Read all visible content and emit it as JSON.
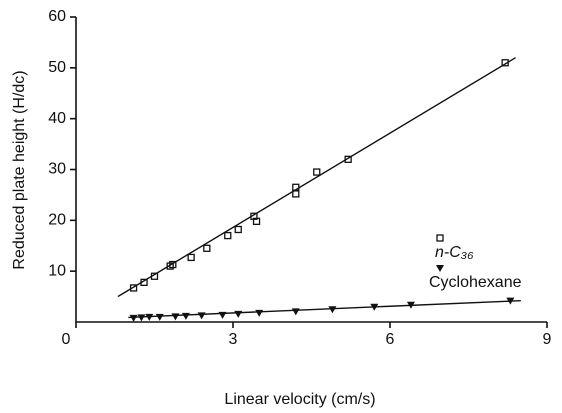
{
  "chart_data": {
    "type": "scatter",
    "x_label": "Linear velocity (cm/s)",
    "y_label": "Reduced plate height (H/dc)",
    "xlim": [
      0,
      9
    ],
    "xticks": [
      0,
      3,
      6,
      9
    ],
    "ylim": [
      0,
      60
    ],
    "yticks": [
      10,
      20,
      30,
      40,
      50,
      60
    ],
    "series": [
      {
        "name": "n-C₃₆",
        "marker": "open-square",
        "color": "#111",
        "x": [
          1.1,
          1.3,
          1.5,
          1.8,
          1.85,
          2.2,
          2.5,
          2.9,
          3.1,
          3.4,
          3.45,
          4.2,
          4.2,
          4.6,
          5.2,
          8.2
        ],
        "values": [
          6.7,
          7.8,
          9,
          11,
          11.3,
          12.7,
          14.5,
          17,
          18.2,
          20.8,
          19.8,
          25.2,
          26.5,
          29.5,
          32,
          51
        ],
        "fit": {
          "x": [
            0.8,
            8.4
          ],
          "values": [
            5,
            52
          ]
        }
      },
      {
        "name": "Cyclohexane",
        "marker": "filled-triangle",
        "color": "#111",
        "x": [
          1.1,
          1.25,
          1.4,
          1.6,
          1.9,
          2.1,
          2.4,
          2.8,
          3.1,
          3.5,
          4.2,
          4.9,
          5.7,
          6.4,
          8.3
        ],
        "values": [
          0.8,
          0.9,
          1.0,
          1.0,
          1.1,
          1.2,
          1.3,
          1.4,
          1.6,
          1.8,
          2.1,
          2.5,
          3.0,
          3.4,
          4.2
        ],
        "fit": {
          "x": [
            1.0,
            8.5
          ],
          "values": [
            0.9,
            4.2
          ]
        }
      }
    ]
  }
}
